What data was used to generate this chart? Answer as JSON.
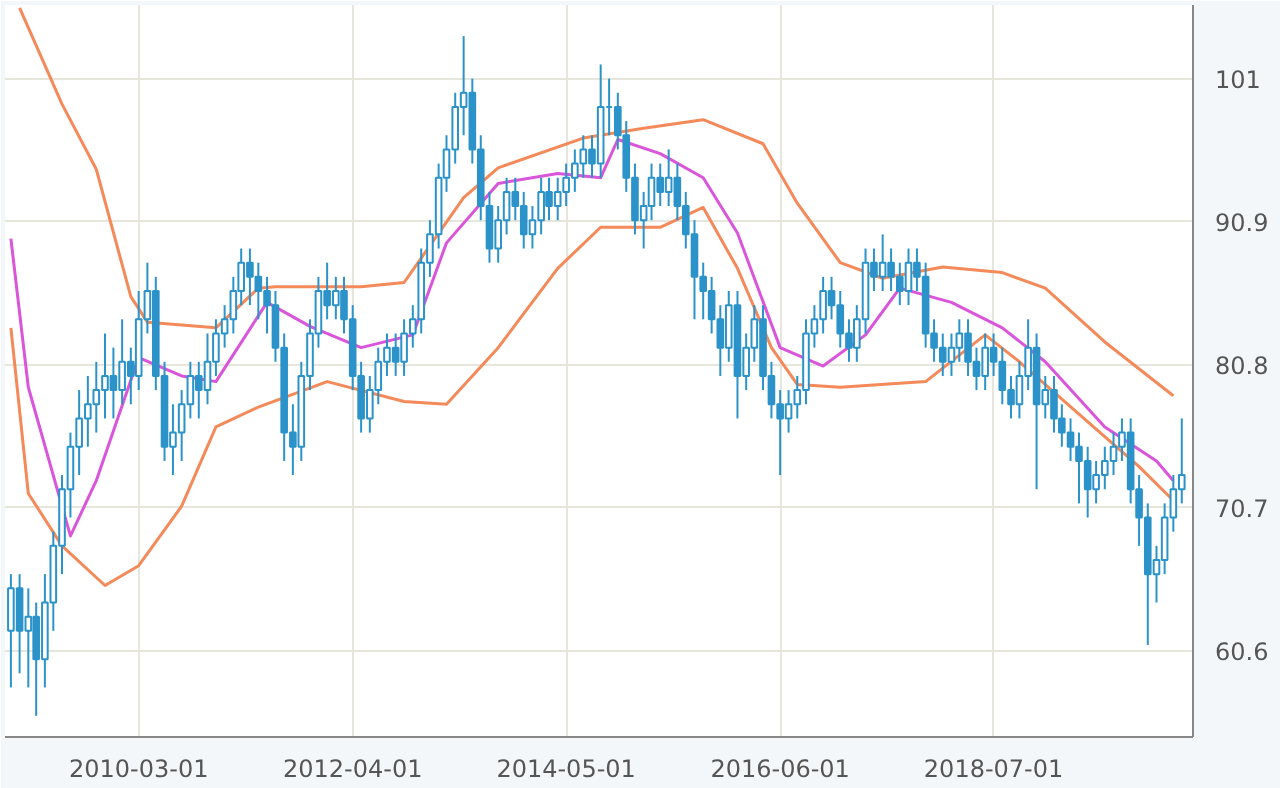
{
  "chart_data": {
    "type": "candlestick",
    "color": "#2b93c9",
    "x": [
      "2008-12",
      "2009-01",
      "2009-02",
      "2009-03",
      "2009-04",
      "2009-05",
      "2009-06",
      "2009-07",
      "2009-08",
      "2009-09",
      "2009-10",
      "2009-11",
      "2009-12",
      "2010-01",
      "2010-02",
      "2010-03",
      "2010-04",
      "2010-05",
      "2010-06",
      "2010-07",
      "2010-08",
      "2010-09",
      "2010-10",
      "2010-11",
      "2010-12",
      "2011-01",
      "2011-02",
      "2011-03",
      "2011-04",
      "2011-05",
      "2011-06",
      "2011-07",
      "2011-08",
      "2011-09",
      "2011-10",
      "2011-11",
      "2011-12",
      "2012-01",
      "2012-02",
      "2012-03",
      "2012-04",
      "2012-05",
      "2012-06",
      "2012-07",
      "2012-08",
      "2012-09",
      "2012-10",
      "2012-11",
      "2012-12",
      "2013-01",
      "2013-02",
      "2013-03",
      "2013-04",
      "2013-05",
      "2013-06",
      "2013-07",
      "2013-08",
      "2013-09",
      "2013-10",
      "2013-11",
      "2013-12",
      "2014-01",
      "2014-02",
      "2014-03",
      "2014-04",
      "2014-05",
      "2014-06",
      "2014-07",
      "2014-08",
      "2014-09",
      "2014-10",
      "2014-11",
      "2014-12",
      "2015-01",
      "2015-02",
      "2015-03",
      "2015-04",
      "2015-05",
      "2015-06",
      "2015-07",
      "2015-08",
      "2015-09",
      "2015-10",
      "2015-11",
      "2015-12",
      "2016-01",
      "2016-02",
      "2016-03",
      "2016-04",
      "2016-05",
      "2016-06",
      "2016-07",
      "2016-08",
      "2016-09",
      "2016-10",
      "2016-11",
      "2016-12",
      "2017-01",
      "2017-02",
      "2017-03",
      "2017-04",
      "2017-05",
      "2017-06",
      "2017-07",
      "2017-08",
      "2017-09",
      "2017-10",
      "2017-11",
      "2017-12",
      "2018-01",
      "2018-02",
      "2018-03",
      "2018-04",
      "2018-05",
      "2018-06",
      "2018-07",
      "2018-08",
      "2018-09",
      "2018-10",
      "2018-11",
      "2018-12",
      "2019-01",
      "2019-02",
      "2019-03",
      "2019-04",
      "2019-05",
      "2019-06",
      "2019-07",
      "2019-08",
      "2019-09",
      "2019-10",
      "2019-11",
      "2019-12",
      "2020-01",
      "2020-02",
      "2020-03",
      "2020-04",
      "2020-05"
    ],
    "ohlc": [
      [
        62,
        66,
        58,
        65
      ],
      [
        65,
        66,
        59,
        62
      ],
      [
        62,
        65,
        58,
        63
      ],
      [
        63,
        64,
        56,
        60
      ],
      [
        60,
        66,
        58,
        64
      ],
      [
        64,
        69,
        62,
        68
      ],
      [
        68,
        73,
        66,
        72
      ],
      [
        72,
        76,
        70,
        75
      ],
      [
        75,
        79,
        73,
        77
      ],
      [
        77,
        80,
        75,
        78
      ],
      [
        78,
        81,
        76,
        79
      ],
      [
        79,
        83,
        77,
        80
      ],
      [
        80,
        82,
        77,
        79
      ],
      [
        79,
        84,
        78,
        81
      ],
      [
        81,
        82,
        78,
        80
      ],
      [
        80,
        86,
        79,
        84
      ],
      [
        84,
        88,
        83,
        86
      ],
      [
        86,
        87,
        79,
        80
      ],
      [
        80,
        81,
        74,
        75
      ],
      [
        75,
        78,
        73,
        76
      ],
      [
        76,
        79,
        74,
        78
      ],
      [
        78,
        81,
        77,
        80
      ],
      [
        80,
        81,
        77,
        79
      ],
      [
        79,
        83,
        78,
        81
      ],
      [
        81,
        84,
        80,
        83
      ],
      [
        83,
        85,
        82,
        84
      ],
      [
        84,
        87,
        83,
        86
      ],
      [
        86,
        89,
        85,
        88
      ],
      [
        88,
        89,
        85,
        87
      ],
      [
        87,
        88,
        84,
        86
      ],
      [
        86,
        87,
        83,
        85
      ],
      [
        85,
        86,
        81,
        82
      ],
      [
        82,
        83,
        74,
        76
      ],
      [
        76,
        78,
        73,
        75
      ],
      [
        75,
        81,
        74,
        80
      ],
      [
        80,
        84,
        79,
        83
      ],
      [
        83,
        87,
        82,
        86
      ],
      [
        86,
        88,
        84,
        85
      ],
      [
        85,
        87,
        84,
        86
      ],
      [
        86,
        87,
        83,
        84
      ],
      [
        84,
        85,
        79,
        80
      ],
      [
        80,
        81,
        76,
        77
      ],
      [
        77,
        80,
        76,
        79
      ],
      [
        79,
        82,
        78,
        81
      ],
      [
        81,
        83,
        80,
        82
      ],
      [
        82,
        83,
        80,
        81
      ],
      [
        81,
        84,
        80,
        83
      ],
      [
        83,
        85,
        82,
        84
      ],
      [
        84,
        89,
        83,
        88
      ],
      [
        88,
        91,
        87,
        90
      ],
      [
        90,
        95,
        89,
        94
      ],
      [
        94,
        97,
        93,
        96
      ],
      [
        96,
        100,
        95,
        99
      ],
      [
        99,
        104,
        97,
        100
      ],
      [
        100,
        101,
        95,
        96
      ],
      [
        96,
        97,
        91,
        92
      ],
      [
        92,
        93,
        88,
        89
      ],
      [
        89,
        92,
        88,
        91
      ],
      [
        91,
        94,
        90,
        93
      ],
      [
        93,
        94,
        91,
        92
      ],
      [
        92,
        93,
        89,
        90
      ],
      [
        90,
        92,
        89,
        91
      ],
      [
        91,
        94,
        90,
        93
      ],
      [
        93,
        94,
        91,
        92
      ],
      [
        92,
        94,
        91,
        93
      ],
      [
        93,
        95,
        92,
        94
      ],
      [
        94,
        96,
        93,
        95
      ],
      [
        95,
        97,
        94,
        96
      ],
      [
        96,
        97,
        94,
        95
      ],
      [
        95,
        102,
        94,
        99
      ],
      [
        99,
        101,
        97,
        99
      ],
      [
        99,
        100,
        96,
        97
      ],
      [
        97,
        98,
        93,
        94
      ],
      [
        94,
        95,
        90,
        91
      ],
      [
        91,
        93,
        89,
        92
      ],
      [
        92,
        95,
        91,
        94
      ],
      [
        94,
        95,
        92,
        93
      ],
      [
        93,
        96,
        92,
        94
      ],
      [
        94,
        95,
        91,
        92
      ],
      [
        92,
        93,
        89,
        90
      ],
      [
        90,
        91,
        84,
        87
      ],
      [
        87,
        88,
        84,
        86
      ],
      [
        86,
        87,
        83,
        84
      ],
      [
        84,
        85,
        80,
        82
      ],
      [
        82,
        86,
        81,
        85
      ],
      [
        85,
        86,
        77,
        80
      ],
      [
        80,
        83,
        79,
        82
      ],
      [
        82,
        85,
        81,
        84
      ],
      [
        84,
        85,
        79,
        80
      ],
      [
        80,
        81,
        77,
        78
      ],
      [
        78,
        79,
        73,
        77
      ],
      [
        77,
        79,
        76,
        78
      ],
      [
        78,
        80,
        77,
        79
      ],
      [
        79,
        84,
        78,
        83
      ],
      [
        83,
        85,
        82,
        84
      ],
      [
        84,
        87,
        83,
        86
      ],
      [
        86,
        87,
        84,
        85
      ],
      [
        85,
        86,
        82,
        83
      ],
      [
        83,
        84,
        81,
        82
      ],
      [
        82,
        85,
        81,
        84
      ],
      [
        84,
        89,
        83,
        88
      ],
      [
        88,
        89,
        86,
        87
      ],
      [
        87,
        90,
        86,
        88
      ],
      [
        88,
        89,
        86,
        87
      ],
      [
        87,
        88,
        85,
        86
      ],
      [
        86,
        89,
        85,
        88
      ],
      [
        88,
        89,
        86,
        87
      ],
      [
        87,
        88,
        82,
        83
      ],
      [
        83,
        84,
        81,
        82
      ],
      [
        82,
        83,
        80,
        81
      ],
      [
        81,
        83,
        80,
        82
      ],
      [
        82,
        84,
        81,
        83
      ],
      [
        83,
        84,
        80,
        81
      ],
      [
        81,
        82,
        79,
        80
      ],
      [
        80,
        83,
        79,
        82
      ],
      [
        82,
        83,
        80,
        81
      ],
      [
        81,
        82,
        78,
        79
      ],
      [
        79,
        80,
        77,
        78
      ],
      [
        78,
        81,
        77,
        80
      ],
      [
        80,
        84,
        79,
        82
      ],
      [
        82,
        83,
        72,
        78
      ],
      [
        78,
        80,
        77,
        79
      ],
      [
        79,
        80,
        76,
        77
      ],
      [
        77,
        78,
        75,
        76
      ],
      [
        76,
        77,
        74,
        75
      ],
      [
        75,
        76,
        71,
        74
      ],
      [
        74,
        75,
        70,
        72
      ],
      [
        72,
        74,
        71,
        73
      ],
      [
        73,
        75,
        72,
        74
      ],
      [
        74,
        76,
        73,
        75
      ],
      [
        75,
        77,
        74,
        76
      ],
      [
        76,
        77,
        71,
        72
      ],
      [
        72,
        73,
        68,
        70
      ],
      [
        70,
        71,
        61,
        66
      ],
      [
        66,
        68,
        64,
        67
      ],
      [
        67,
        71,
        66,
        70
      ],
      [
        70,
        73,
        69,
        72
      ],
      [
        72,
        77,
        71,
        73
      ]
    ],
    "series": [
      {
        "type": "line",
        "color": "#f4895a",
        "x": [
          "2009-01",
          "2009-06",
          "2009-10",
          "2010-02",
          "2010-04",
          "2010-12",
          "2011-05",
          "2011-07",
          "2012-05",
          "2012-10",
          "2013-05",
          "2013-09",
          "2014-07",
          "2015-02",
          "2015-09",
          "2016-04",
          "2016-08",
          "2017-01",
          "2017-06",
          "2018-01",
          "2018-08",
          "2019-01",
          "2019-08",
          "2020-04"
        ],
        "values": [
          106,
          99.2,
          94.6,
          85.6,
          83.8,
          83.4,
          86.2,
          86.3,
          86.3,
          86.6,
          92.6,
          94.7,
          96.8,
          97.5,
          98.1,
          96.4,
          92.2,
          88,
          86.9,
          87.7,
          87.3,
          86.2,
          82.4,
          78.6
        ]
      },
      {
        "type": "line",
        "color": "#f4895a",
        "x": [
          "2008-12",
          "2009-02",
          "2009-06",
          "2009-11",
          "2010-03",
          "2010-08",
          "2010-12",
          "2011-05",
          "2012-01",
          "2012-10",
          "2013-03",
          "2013-09",
          "2014-04",
          "2014-09",
          "2015-04",
          "2015-09",
          "2016-01",
          "2016-05",
          "2016-08",
          "2017-01",
          "2017-11",
          "2018-06",
          "2018-10",
          "2019-05",
          "2019-12",
          "2020-04"
        ],
        "values": [
          83.4,
          71.7,
          68,
          65.2,
          66.6,
          70.8,
          76.4,
          77.8,
          79.6,
          78.2,
          78,
          82,
          87.6,
          90.5,
          90.5,
          91.9,
          87.6,
          82,
          79.4,
          79.2,
          79.6,
          82.9,
          81,
          77.3,
          73.6,
          71.2
        ]
      },
      {
        "type": "line",
        "color": "#d955d9",
        "x": [
          "2008-12",
          "2009-02",
          "2009-07",
          "2009-10",
          "2010-03",
          "2010-08",
          "2010-12",
          "2011-06",
          "2011-11",
          "2012-05",
          "2012-11",
          "2013-03",
          "2013-09",
          "2014-04",
          "2014-09",
          "2014-11",
          "2015-04",
          "2015-09",
          "2016-01",
          "2016-06",
          "2016-11",
          "2017-04",
          "2017-08",
          "2018-02",
          "2018-08",
          "2019-01",
          "2019-08",
          "2020-02",
          "2020-04"
        ],
        "values": [
          89.7,
          79.2,
          68.7,
          72.6,
          81.3,
          80,
          79.6,
          85.2,
          83.5,
          82,
          82.9,
          89.4,
          93.6,
          94.3,
          94,
          96.7,
          95.7,
          94,
          90.1,
          82,
          80.7,
          82.9,
          86.2,
          85.2,
          83.4,
          81,
          76.4,
          74,
          72.6
        ]
      }
    ],
    "xlim": [
      "2008-11-10",
      "2020-06-10"
    ],
    "xticks": [
      {
        "value": "2010-03-01",
        "label": "2010-03-01"
      },
      {
        "value": "2012-04-01",
        "label": "2012-04-01"
      },
      {
        "value": "2014-05-01",
        "label": "2014-05-01"
      },
      {
        "value": "2016-06-01",
        "label": "2016-06-01"
      },
      {
        "value": "2018-07-01",
        "label": "2018-07-01"
      }
    ],
    "ylim": [
      54.5,
      106.2
    ],
    "yticks": [
      60.6,
      70.7,
      80.8,
      90.9,
      101
    ],
    "grid": true
  }
}
